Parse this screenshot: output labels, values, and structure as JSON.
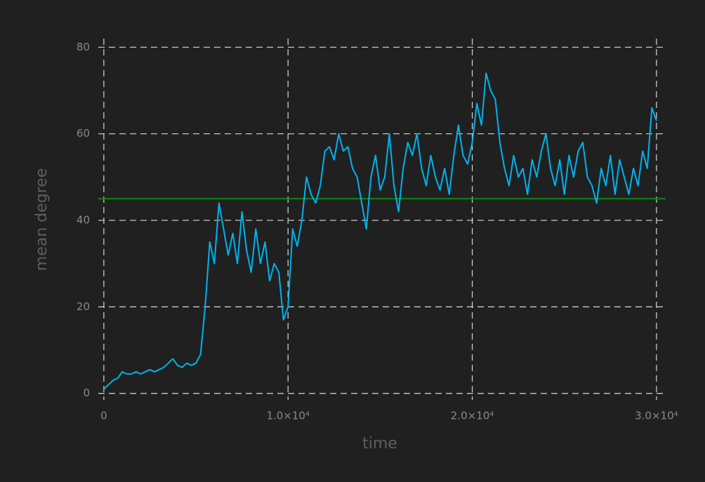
{
  "chart_data": {
    "type": "line",
    "xlabel": "time",
    "ylabel": "mean degree",
    "x": [
      0,
      250,
      500,
      750,
      1000,
      1250,
      1500,
      1750,
      2000,
      2250,
      2500,
      2750,
      3000,
      3250,
      3500,
      3750,
      4000,
      4250,
      4500,
      4750,
      5000,
      5250,
      5500,
      5750,
      6000,
      6250,
      6500,
      6750,
      7000,
      7250,
      7500,
      7750,
      8000,
      8250,
      8500,
      8750,
      9000,
      9250,
      9500,
      9750,
      10000,
      10250,
      10500,
      10750,
      11000,
      11250,
      11500,
      11750,
      12000,
      12250,
      12500,
      12750,
      13000,
      13250,
      13500,
      13750,
      14000,
      14250,
      14500,
      14750,
      15000,
      15250,
      15500,
      15750,
      16000,
      16250,
      16500,
      16750,
      17000,
      17250,
      17500,
      17750,
      18000,
      18250,
      18500,
      18750,
      19000,
      19250,
      19500,
      19750,
      20000,
      20250,
      20500,
      20750,
      21000,
      21250,
      21500,
      21750,
      22000,
      22250,
      22500,
      22750,
      23000,
      23250,
      23500,
      23750,
      24000,
      24250,
      24500,
      24750,
      25000,
      25250,
      25500,
      25750,
      26000,
      26250,
      26500,
      26750,
      27000,
      27250,
      27500,
      27750,
      28000,
      28250,
      28500,
      28750,
      29000,
      29250,
      29500,
      29750,
      30000
    ],
    "series": [
      {
        "color": "#00b2ee",
        "values": [
          1,
          2,
          3,
          3.5,
          5,
          4.5,
          4.5,
          5,
          4.5,
          5,
          5.5,
          5,
          5.5,
          6,
          7,
          8,
          6.5,
          6,
          7,
          6.5,
          7,
          9,
          20,
          35,
          30,
          44,
          38,
          32,
          37,
          30,
          42,
          33,
          28,
          38,
          30,
          35,
          26,
          30,
          28,
          17,
          20,
          38,
          34,
          40,
          50,
          46,
          44,
          48,
          56,
          57,
          54,
          60,
          56,
          57,
          52,
          50,
          44,
          38,
          50,
          55,
          47,
          50,
          60,
          48,
          42,
          52,
          58,
          55,
          60,
          52,
          48,
          55,
          50,
          47,
          52,
          46,
          55,
          62,
          55,
          53,
          58,
          67,
          62,
          74,
          70,
          68,
          58,
          52,
          48,
          55,
          50,
          52,
          46,
          54,
          50,
          56,
          60,
          52,
          48,
          54,
          46,
          55,
          50,
          56,
          58,
          50,
          48,
          44,
          52,
          48,
          55,
          46,
          54,
          50,
          46,
          52,
          48,
          56,
          52,
          66,
          63
        ]
      }
    ],
    "hline": {
      "value": 45,
      "color": "#0a8a0a"
    },
    "xlim": [
      -300,
      30500
    ],
    "ylim": [
      -1.5,
      82
    ],
    "xticks": [
      0,
      {
        "value": 10000,
        "label": "1.0×10⁴"
      },
      {
        "value": 20000,
        "label": "2.0×10⁴"
      },
      {
        "value": 30000,
        "label": "3.0×10⁴"
      }
    ],
    "yticks": [
      0,
      20,
      40,
      60,
      80
    ],
    "grid": true
  }
}
